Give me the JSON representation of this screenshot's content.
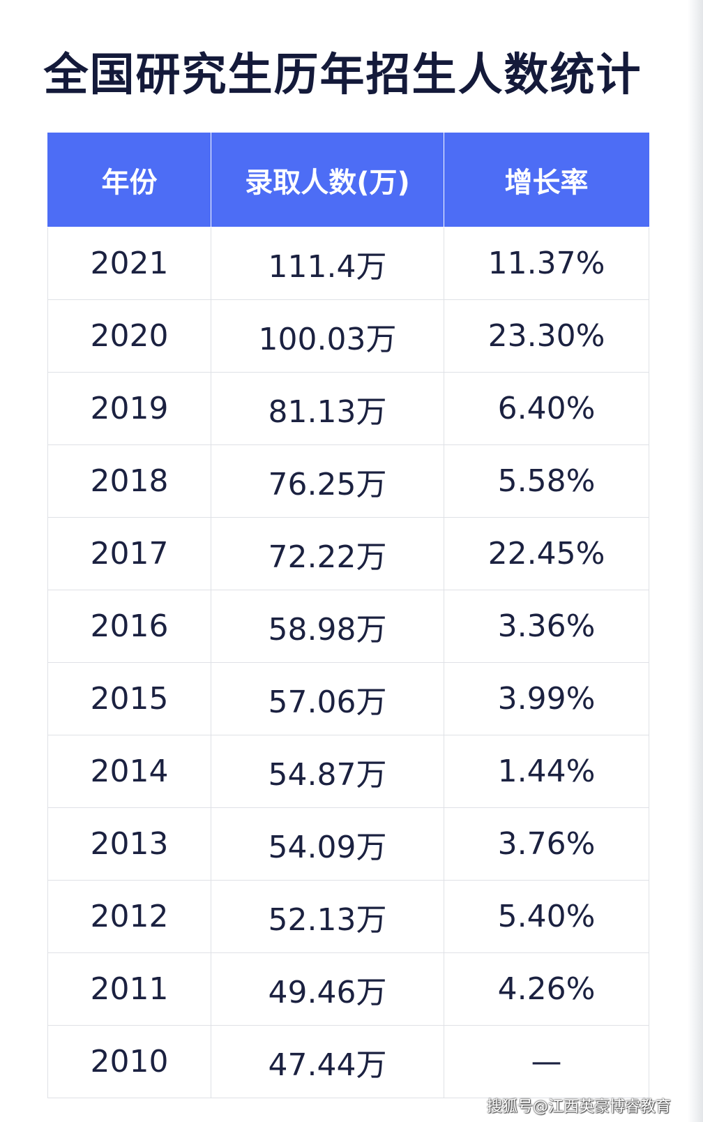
{
  "title": "全国研究生历年招生人数统计",
  "table": {
    "headers": [
      "年份",
      "录取人数(万)",
      "增长率"
    ],
    "rows": [
      [
        "2021",
        "111.4万",
        "11.37%"
      ],
      [
        "2020",
        "100.03万",
        "23.30%"
      ],
      [
        "2019",
        "81.13万",
        "6.40%"
      ],
      [
        "2018",
        "76.25万",
        "5.58%"
      ],
      [
        "2017",
        "72.22万",
        "22.45%"
      ],
      [
        "2016",
        "58.98万",
        "3.36%"
      ],
      [
        "2015",
        "57.06万",
        "3.99%"
      ],
      [
        "2014",
        "54.87万",
        "1.44%"
      ],
      [
        "2013",
        "54.09万",
        "3.76%"
      ],
      [
        "2012",
        "52.13万",
        "5.40%"
      ],
      [
        "2011",
        "49.46万",
        "4.26%"
      ],
      [
        "2010",
        "47.44万",
        "—"
      ]
    ]
  },
  "watermark": "搜狐号@江西英豪博睿教育",
  "colors": {
    "header_bg": "#4d6df5",
    "title_text": "#141a3a",
    "cell_text": "#1b2140",
    "grid": "#dfe1e6"
  }
}
